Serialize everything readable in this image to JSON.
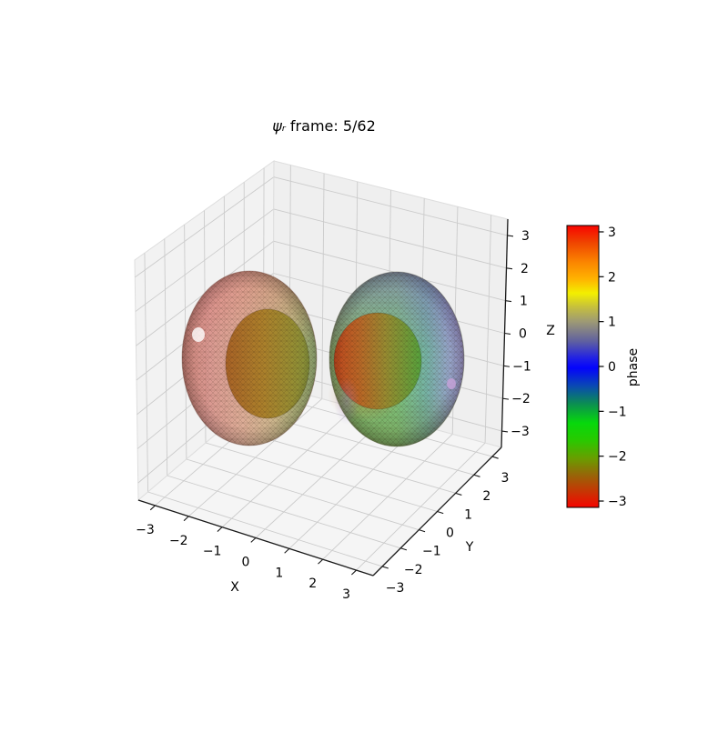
{
  "chart_data": {
    "type": "surface3d",
    "title": "ψᵣ frame: 5/62",
    "title_psi": "ψᵣ",
    "title_rest": "frame: 5/62",
    "frame": {
      "current": 5,
      "total": 62
    },
    "background": "#ffffff",
    "axes": {
      "x": {
        "label": "X",
        "lim": [
          -3.5,
          3.5
        ],
        "tick_values": [
          -3,
          -2,
          -1,
          0,
          1,
          2,
          3
        ],
        "tick_labels": [
          "−3",
          "−2",
          "−1",
          "0",
          "1",
          "2",
          "3"
        ]
      },
      "y": {
        "label": "Y",
        "lim": [
          -3.5,
          3.5
        ],
        "tick_values": [
          -3,
          -2,
          -1,
          0,
          1,
          2,
          3
        ],
        "tick_labels": [
          "−3",
          "−2",
          "−1",
          "0",
          "1",
          "2",
          "3"
        ]
      },
      "z": {
        "label": "Z",
        "lim": [
          -3.5,
          3.5
        ],
        "tick_values": [
          3,
          2,
          1,
          0,
          -1,
          -2,
          -3
        ],
        "tick_labels": [
          "3",
          "2",
          "1",
          "0",
          "−1",
          "−2",
          "−3"
        ]
      }
    },
    "grid": {
      "visible": true,
      "color": "#cbcbcb",
      "pane_color": "#f2f2f2",
      "right_pane_color": "#efefef",
      "floor_color": "#f5f5f5"
    },
    "colorbar": {
      "label": "phase",
      "range": [
        -3.1416,
        3.1416
      ],
      "tick_values": [
        3,
        2,
        1,
        0,
        -1,
        -2,
        -3
      ],
      "tick_labels": [
        "3",
        "2",
        "1",
        "0",
        "−1",
        "−2",
        "−3"
      ],
      "gradient": [
        {
          "p": 0.0,
          "c": "#f80400"
        },
        {
          "p": 0.06,
          "c": "#ef4400"
        },
        {
          "p": 0.13,
          "c": "#fb8500"
        },
        {
          "p": 0.19,
          "c": "#ffb300"
        },
        {
          "p": 0.24,
          "c": "#f3ef00"
        },
        {
          "p": 0.29,
          "c": "#c5bf3e"
        },
        {
          "p": 0.34,
          "c": "#9e9a74"
        },
        {
          "p": 0.41,
          "c": "#60619f"
        },
        {
          "p": 0.47,
          "c": "#2121e4"
        },
        {
          "p": 0.505,
          "c": "#0404fc"
        },
        {
          "p": 0.57,
          "c": "#0a4ab2"
        },
        {
          "p": 0.635,
          "c": "#0b914e"
        },
        {
          "p": 0.7,
          "c": "#07d80c"
        },
        {
          "p": 0.76,
          "c": "#27ca00"
        },
        {
          "p": 0.825,
          "c": "#689e00"
        },
        {
          "p": 0.885,
          "c": "#976508"
        },
        {
          "p": 0.945,
          "c": "#c83404"
        },
        {
          "p": 1.0,
          "c": "#f60400"
        }
      ]
    },
    "surfaces": {
      "left_outer": {
        "desc": "translucent mesh isosurface, left lobe",
        "opacity": 0.8,
        "stops": [
          [
            0,
            "#c3685c"
          ],
          [
            0.2,
            "#d5837a"
          ],
          [
            0.45,
            "#d79b80"
          ],
          [
            0.7,
            "#c1a873"
          ],
          [
            0.88,
            "#a0aa5e"
          ],
          [
            1,
            "#8cab62"
          ]
        ],
        "edge": "#6b4034",
        "tint_top": "#e07878"
      },
      "left_inner": {
        "desc": "opaque core, left lobe",
        "opacity": 0.93,
        "stops": [
          [
            0,
            "#a55e1e"
          ],
          [
            0.45,
            "#a97d24"
          ],
          [
            0.75,
            "#97892c"
          ],
          [
            1,
            "#838f35"
          ]
        ]
      },
      "right_outer": {
        "desc": "translucent mesh isosurface, right lobe",
        "opacity": 0.8,
        "stops": [
          [
            0,
            "#6f8f48"
          ],
          [
            0.25,
            "#66b85a"
          ],
          [
            0.5,
            "#62bd64"
          ],
          [
            0.72,
            "#57a392"
          ],
          [
            0.88,
            "#7d92bc"
          ],
          [
            1,
            "#8e85c6"
          ]
        ],
        "edge": "#4c5a3a",
        "tint_top": "#8a6ec8",
        "tint_bottom": "#6e6e28",
        "core_glow": "#c87828",
        "side_patch": "#9b7fd0"
      },
      "right_inner": {
        "desc": "opaque core, right lobe",
        "opacity": 0.93,
        "stops": [
          [
            0,
            "#c64018"
          ],
          [
            0.3,
            "#bc6222"
          ],
          [
            0.6,
            "#98882c"
          ],
          [
            1,
            "#53a136"
          ]
        ]
      }
    },
    "spots": [
      {
        "name": "left-lobe-highlight",
        "color": "#ffffff",
        "opacity": 0.8
      },
      {
        "name": "right-lobe-highlight",
        "color": "#c4a2d8",
        "opacity": 0.85
      }
    ]
  }
}
